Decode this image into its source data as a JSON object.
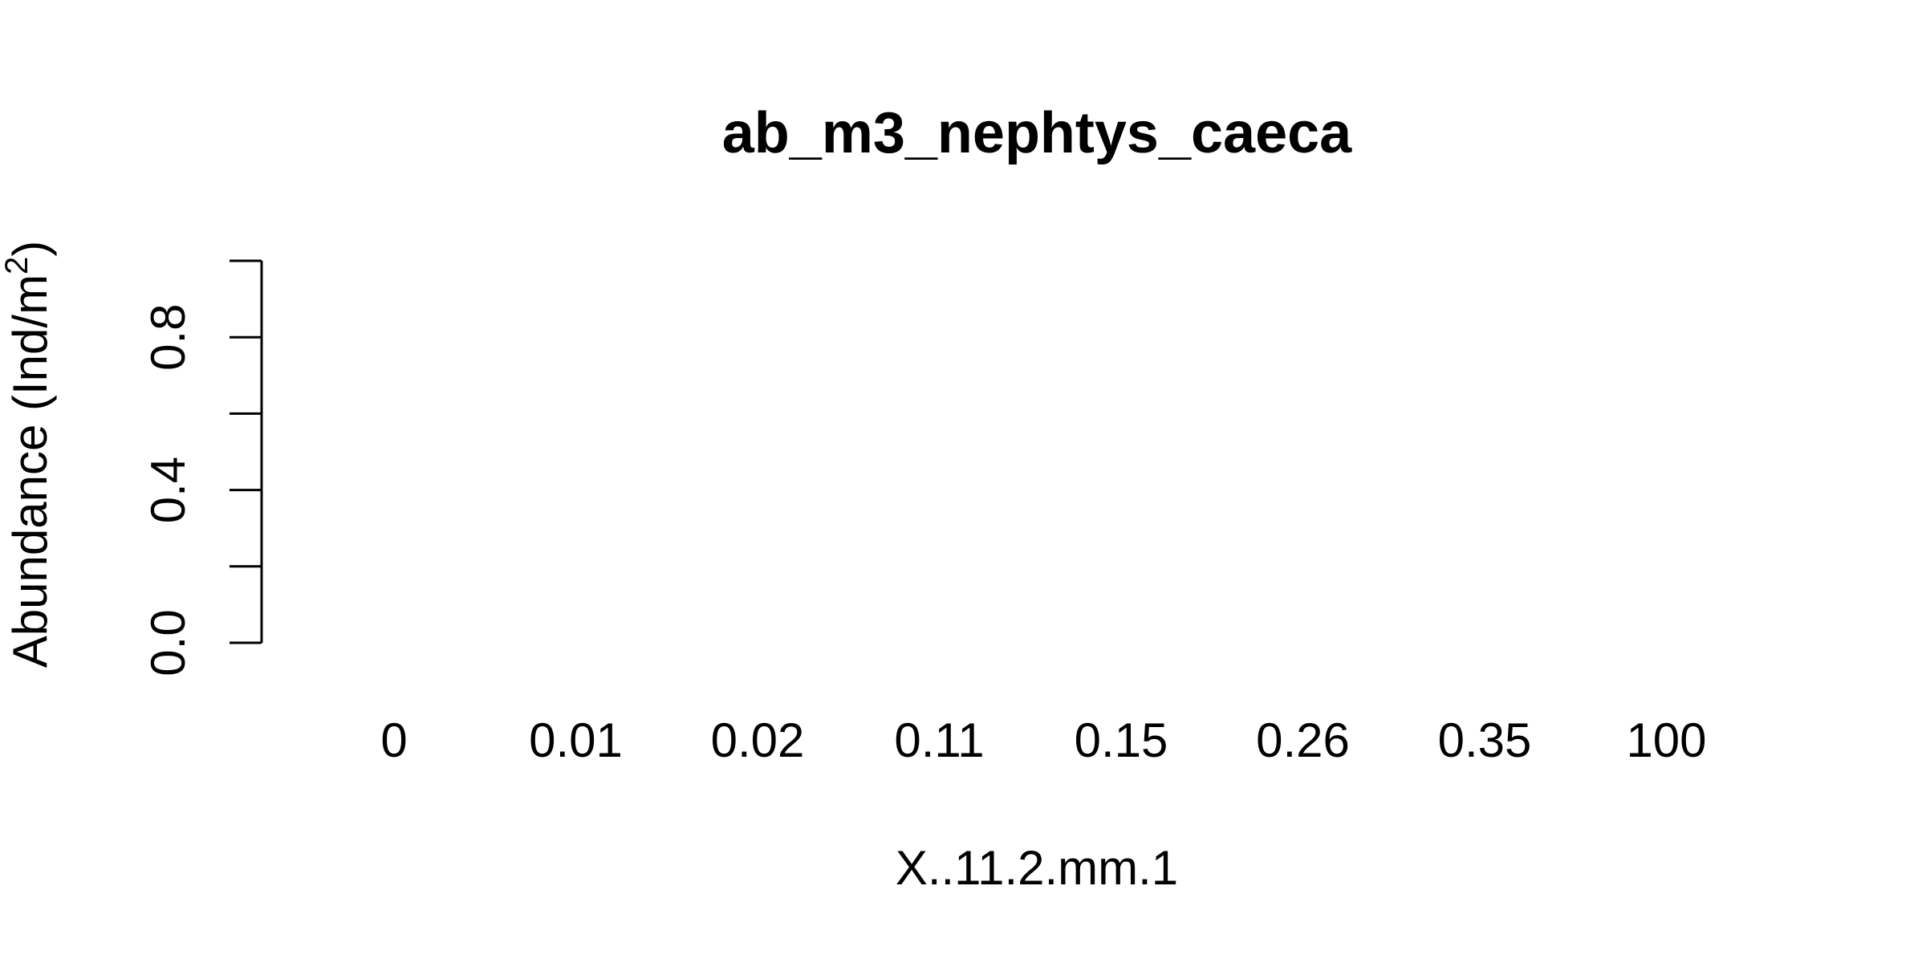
{
  "chart_data": {
    "type": "bar",
    "title": "ab_m3_nephtys_caeca",
    "xlabel": "X..11.2.mm.1",
    "ylabel_main": "Abundance (Ind/m",
    "ylabel_sup": "2",
    "ylabel_close": ")",
    "categories": [
      "0",
      "0.01",
      "0.02",
      "0.11",
      "0.15",
      "0.26",
      "0.35",
      "100"
    ],
    "values": [
      0,
      0,
      0,
      0,
      0,
      0,
      0,
      0
    ],
    "ylim": [
      0,
      1
    ],
    "yticks": [
      0,
      0.2,
      0.4,
      0.6,
      0.8,
      1.0
    ],
    "ytick_labels": [
      {
        "value": 0,
        "label": "0.0"
      },
      {
        "value": 0.4,
        "label": "0.4"
      },
      {
        "value": 0.8,
        "label": "0.8"
      }
    ],
    "grid": false,
    "colors": {
      "axis": "#000000",
      "text": "#000000",
      "background": "#ffffff"
    }
  }
}
